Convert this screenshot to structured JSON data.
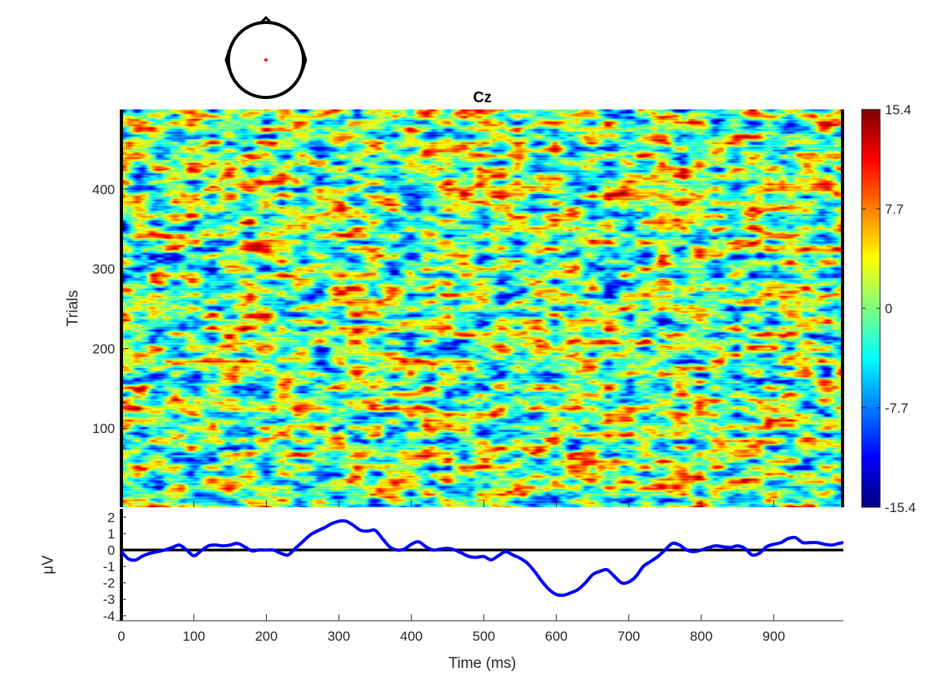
{
  "chart_data": [
    {
      "type": "heatmap",
      "title": "Cz",
      "xlabel": "",
      "ylabel": "Trials",
      "xlim": [
        0,
        996
      ],
      "ylim": [
        1,
        500
      ],
      "yticks": [
        100,
        200,
        300,
        400
      ],
      "trials": 500,
      "colorbar": {
        "colormap": "jet",
        "clim": [
          -15.4,
          15.4
        ],
        "ticks": [
          15.4,
          7.7,
          0,
          -7.7,
          -15.4
        ],
        "tick_labels": [
          "15.4",
          "7.7",
          "0",
          "-7.7",
          "-15.4"
        ]
      },
      "scalp_map": {
        "electrode": "Cz",
        "marker_color": "#ff0000"
      }
    },
    {
      "type": "line",
      "title": "",
      "xlabel": "Time (ms)",
      "ylabel": "μV",
      "xlim": [
        0,
        996
      ],
      "ylim": [
        -4.3,
        2.5
      ],
      "xticks": [
        0,
        100,
        200,
        300,
        400,
        500,
        600,
        700,
        800,
        900
      ],
      "xtick_labels": [
        "0",
        "100",
        "200",
        "300",
        "400",
        "500",
        "600",
        "700",
        "800",
        "900"
      ],
      "yticks": [
        2,
        1,
        0,
        -1,
        -2,
        -3,
        -4
      ],
      "ytick_labels": [
        "2",
        "1",
        "0",
        "-1",
        "-2",
        "-3",
        "-4"
      ],
      "zero_line": true,
      "series": [
        {
          "color": "#0000ff",
          "x": [
            0,
            10,
            20,
            30,
            40,
            50,
            60,
            70,
            80,
            90,
            100,
            110,
            120,
            130,
            140,
            150,
            160,
            170,
            180,
            190,
            200,
            210,
            220,
            230,
            240,
            250,
            260,
            270,
            280,
            290,
            300,
            310,
            320,
            330,
            340,
            350,
            360,
            370,
            380,
            390,
            400,
            410,
            420,
            430,
            440,
            450,
            460,
            470,
            480,
            490,
            500,
            510,
            520,
            530,
            540,
            550,
            560,
            570,
            580,
            590,
            600,
            610,
            620,
            630,
            640,
            650,
            660,
            670,
            680,
            690,
            700,
            710,
            720,
            730,
            740,
            750,
            760,
            770,
            780,
            790,
            800,
            810,
            820,
            830,
            840,
            850,
            860,
            870,
            880,
            890,
            900,
            910,
            920,
            930,
            940,
            950,
            960,
            970,
            980,
            990,
            996
          ],
          "y": [
            -0.1,
            -0.55,
            -0.6,
            -0.35,
            -0.2,
            -0.1,
            0.0,
            0.15,
            0.3,
            0.0,
            -0.35,
            -0.05,
            0.25,
            0.3,
            0.25,
            0.3,
            0.4,
            0.2,
            -0.05,
            0.0,
            0.0,
            0.0,
            -0.2,
            -0.3,
            0.1,
            0.5,
            0.9,
            1.15,
            1.35,
            1.6,
            1.75,
            1.75,
            1.5,
            1.2,
            1.15,
            1.2,
            0.7,
            0.2,
            0.0,
            0.05,
            0.35,
            0.5,
            0.2,
            0.0,
            0.05,
            0.1,
            0.0,
            -0.2,
            -0.4,
            -0.45,
            -0.4,
            -0.6,
            -0.35,
            -0.1,
            -0.3,
            -0.5,
            -0.8,
            -1.3,
            -1.9,
            -2.4,
            -2.7,
            -2.75,
            -2.6,
            -2.4,
            -2.0,
            -1.5,
            -1.3,
            -1.2,
            -1.6,
            -2.0,
            -1.95,
            -1.6,
            -1.0,
            -0.7,
            -0.4,
            0.0,
            0.4,
            0.3,
            0.0,
            -0.1,
            0.0,
            0.15,
            0.25,
            0.2,
            0.15,
            0.25,
            0.1,
            -0.3,
            -0.2,
            0.2,
            0.35,
            0.45,
            0.7,
            0.75,
            0.45,
            0.45,
            0.45,
            0.35,
            0.3,
            0.4,
            0.45
          ]
        }
      ]
    }
  ]
}
